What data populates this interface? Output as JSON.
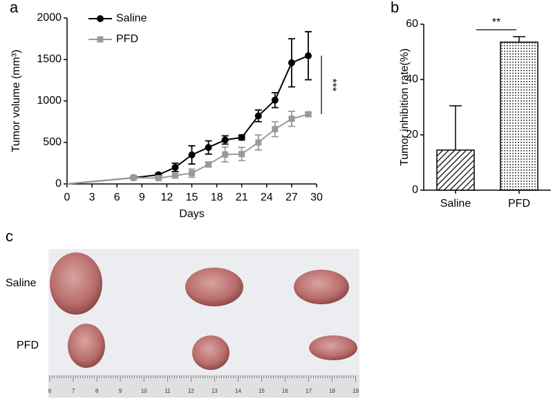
{
  "chart_data": [
    {
      "type": "line",
      "panel": "a",
      "xlabel": "Days",
      "ylabel": "Tumor volume (mm³)",
      "xlim": [
        0,
        30
      ],
      "xticks": [
        0,
        3,
        6,
        9,
        12,
        15,
        18,
        21,
        24,
        27,
        30
      ],
      "ylim": [
        0,
        2000
      ],
      "yticks": [
        0,
        500,
        1000,
        1500,
        2000
      ],
      "legend": "upper left",
      "series": [
        {
          "name": "Saline",
          "color": "#000000",
          "marker": "circle",
          "x": [
            0,
            8,
            11,
            13,
            15,
            17,
            19,
            21,
            23,
            25,
            27,
            29
          ],
          "values": [
            0,
            75,
            110,
            200,
            350,
            440,
            530,
            560,
            820,
            1010,
            1460,
            1545
          ],
          "errors": [
            0,
            15,
            20,
            50,
            110,
            80,
            50,
            30,
            70,
            90,
            290,
            290
          ]
        },
        {
          "name": "PFD",
          "color": "#999999",
          "marker": "square",
          "x": [
            0,
            8,
            11,
            13,
            15,
            17,
            19,
            21,
            23,
            25,
            27,
            29
          ],
          "values": [
            0,
            75,
            70,
            100,
            130,
            235,
            355,
            360,
            500,
            660,
            785,
            840
          ],
          "errors": [
            0,
            10,
            15,
            30,
            50,
            30,
            90,
            80,
            90,
            90,
            90,
            20
          ]
        }
      ],
      "annotation": "***"
    },
    {
      "type": "bar",
      "panel": "b",
      "ylabel": "Tumor inhibition rate(%)",
      "categories": [
        "Saline",
        "PFD"
      ],
      "values": [
        14.5,
        53.5
      ],
      "errors": [
        16,
        2
      ],
      "ylim": [
        0,
        60
      ],
      "yticks": [
        0,
        20,
        40,
        60
      ],
      "annotation": "**"
    }
  ],
  "photo": {
    "panel": "c",
    "rows": [
      "Saline",
      "PFD"
    ],
    "ruler_labels": [
      6,
      7,
      8,
      9,
      10,
      11,
      12,
      13,
      14,
      15,
      16,
      17,
      18,
      19
    ]
  }
}
